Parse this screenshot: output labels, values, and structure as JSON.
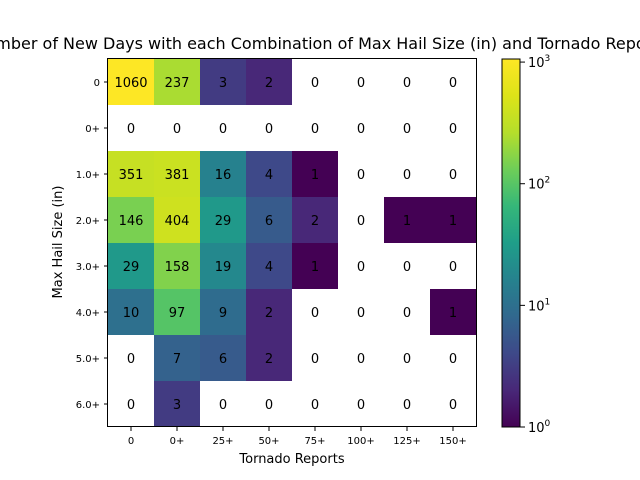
{
  "chart_data": {
    "type": "heatmap",
    "title": "Number of New Days with each Combination of Max Hail Size (in) and Tornado Reports",
    "xlabel": "Tornado Reports",
    "ylabel": "Max Hail Size (in)",
    "x_categories": [
      "0",
      "0+",
      "25+",
      "50+",
      "75+",
      "100+",
      "125+",
      "150+"
    ],
    "y_categories": [
      "0",
      "0+",
      "1.0+",
      "2.0+",
      "3.0+",
      "4.0+",
      "5.0+",
      "6.0+"
    ],
    "values": [
      [
        1060,
        237,
        3,
        2,
        0,
        0,
        0,
        0
      ],
      [
        0,
        0,
        0,
        0,
        0,
        0,
        0,
        0
      ],
      [
        351,
        381,
        16,
        4,
        1,
        0,
        0,
        0
      ],
      [
        146,
        404,
        29,
        6,
        2,
        0,
        1,
        1
      ],
      [
        29,
        158,
        19,
        4,
        1,
        0,
        0,
        0
      ],
      [
        10,
        97,
        9,
        2,
        0,
        0,
        0,
        1
      ],
      [
        0,
        7,
        6,
        2,
        0,
        0,
        0,
        0
      ],
      [
        0,
        3,
        0,
        0,
        0,
        0,
        0,
        0
      ]
    ],
    "color_scale": "log",
    "colormap": "viridis",
    "zero_cells": "blank (white)",
    "colorbar": {
      "range": [
        1,
        1060
      ],
      "tick_labels": [
        "10^0",
        "10^1",
        "10^2",
        "10^3"
      ],
      "tick_values": [
        1,
        10,
        100,
        1000
      ]
    }
  }
}
